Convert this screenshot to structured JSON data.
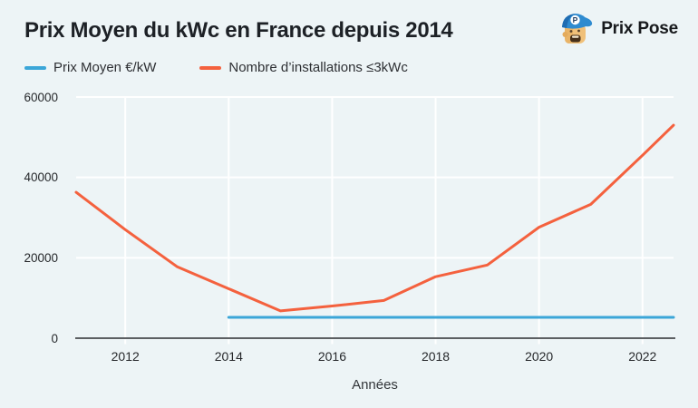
{
  "header": {
    "title": "Prix Moyen du kWc en France depuis 2014",
    "brand": "Prix Pose"
  },
  "chart_data": {
    "type": "line",
    "title": "Prix Moyen du kWc en France depuis 2014",
    "xlabel": "Années",
    "ylabel": "",
    "xlim": [
      2011.05,
      2022.6
    ],
    "ylim": [
      0,
      60000
    ],
    "xticks": [
      2012,
      2014,
      2016,
      2018,
      2020,
      2022
    ],
    "yticks": [
      0,
      20000,
      40000,
      60000
    ],
    "grid": true,
    "gridline_color": "#ffffff",
    "axis_color": "#474a4d",
    "background": "#edf4f6",
    "legend_position": "top-left",
    "series": [
      {
        "name": "Prix Moyen €/kW",
        "color": "#3ba6d8",
        "x": [
          2014,
          2022.6
        ],
        "y": [
          5200,
          5200
        ]
      },
      {
        "name": "Nombre d’installations ≤3kWc",
        "color": "#f4613e",
        "x": [
          2011.05,
          2012,
          2013,
          2014,
          2015,
          2016,
          2017,
          2018,
          2019,
          2020,
          2021,
          2022,
          2022.6
        ],
        "y": [
          36300,
          27000,
          17800,
          12300,
          6800,
          8000,
          9400,
          15300,
          18200,
          27600,
          33300,
          45500,
          53000
        ]
      }
    ]
  }
}
